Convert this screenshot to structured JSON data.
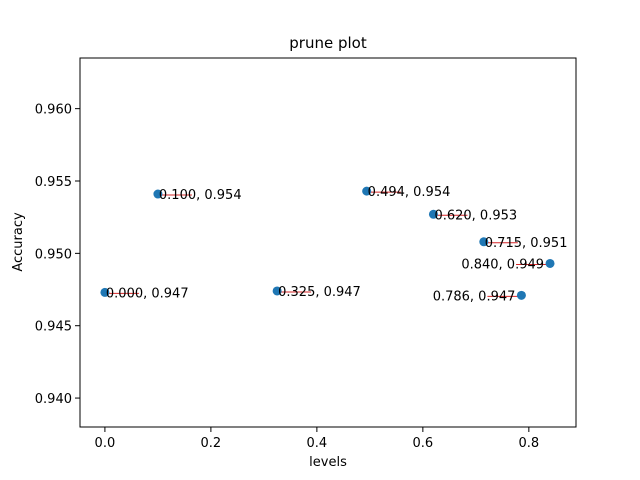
{
  "chart_data": {
    "type": "scatter",
    "title": "prune plot",
    "xlabel": "levels",
    "ylabel": "Accuracy",
    "xlim": [
      -0.047,
      0.889
    ],
    "ylim": [
      0.938,
      0.9635
    ],
    "xticks": [
      0.0,
      0.2,
      0.4,
      0.6,
      0.8
    ],
    "xtick_labels": [
      "0.0",
      "0.2",
      "0.4",
      "0.6",
      "0.8"
    ],
    "yticks": [
      0.94,
      0.945,
      0.95,
      0.955,
      0.96
    ],
    "ytick_labels": [
      "0.940",
      "0.945",
      "0.950",
      "0.955",
      "0.960"
    ],
    "grid": false,
    "marker_color": "#1f77b4",
    "annotation_line_color": "#d62728",
    "points": [
      {
        "x": 0.0,
        "y": 0.9473,
        "label": "0.000, 0.947",
        "align": "left"
      },
      {
        "x": 0.1,
        "y": 0.9541,
        "label": "0.100, 0.954",
        "align": "left"
      },
      {
        "x": 0.325,
        "y": 0.9474,
        "label": "0.325, 0.947",
        "align": "left"
      },
      {
        "x": 0.494,
        "y": 0.9543,
        "label": "0.494, 0.954",
        "align": "left"
      },
      {
        "x": 0.62,
        "y": 0.9527,
        "label": "0.620, 0.953",
        "align": "left"
      },
      {
        "x": 0.715,
        "y": 0.9508,
        "label": "0.715, 0.951",
        "align": "left"
      },
      {
        "x": 0.84,
        "y": 0.9493,
        "label": "0.840, 0.949",
        "align": "right"
      },
      {
        "x": 0.786,
        "y": 0.9471,
        "label": "0.786, 0.947",
        "align": "right"
      }
    ]
  }
}
